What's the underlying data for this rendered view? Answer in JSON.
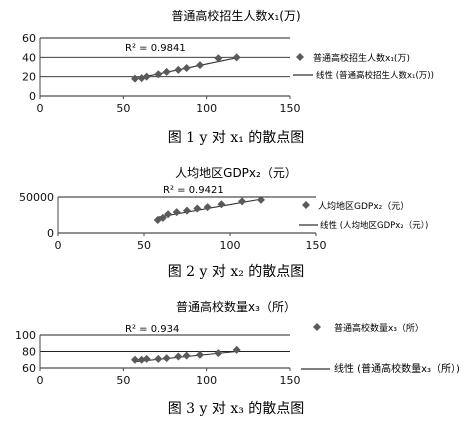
{
  "colors": {
    "axis": "#444444",
    "grid": "#222222",
    "marker": "#5a5a5a",
    "line": "#333333",
    "text": "#111111"
  },
  "chart_data": [
    {
      "type": "scatter",
      "title": "普通高校招生人数x₁(万)",
      "caption": "图 1  y 对 x₁ 的散点图",
      "r2_label": "R² = 0.9841",
      "series": [
        {
          "name": "普通高校招生人数x₁(万)",
          "x": [
            57,
            61,
            64,
            71,
            76,
            83,
            88,
            96,
            107,
            118
          ],
          "y": [
            18,
            18.5,
            20,
            22.5,
            25,
            27,
            29,
            32,
            39,
            40
          ]
        },
        {
          "name": "线性 (普通高校招生人数x₁(万))",
          "trendline": {
            "x": [
              56,
              118
            ],
            "y": [
              17.5,
              39.5
            ]
          }
        }
      ],
      "xlim": [
        0,
        150
      ],
      "ylim": [
        0,
        60
      ],
      "x_ticks": [
        "0",
        "50",
        "100",
        "150"
      ],
      "y_ticks": [
        "0",
        "20",
        "40",
        "60"
      ],
      "grid": "horizontal"
    },
    {
      "type": "scatter",
      "title": "人均地区GDPx₂（元）",
      "caption": "图 2  y 对 x₂ 的散点图",
      "r2_label": "R² = 0.9421",
      "series": [
        {
          "name": "人均地区GDPx₂（元）",
          "x": [
            58,
            61,
            64,
            69,
            75,
            81,
            87,
            95,
            107,
            118
          ],
          "y": [
            18000,
            21000,
            26000,
            29000,
            31000,
            34000,
            36000,
            40000,
            44000,
            46000
          ]
        },
        {
          "name": "线性 (人均地区GDPx₂（元）)",
          "trendline": {
            "x": [
              58,
              118
            ],
            "y": [
              22000,
              47000
            ]
          }
        }
      ],
      "xlim": [
        0,
        150
      ],
      "ylim": [
        0,
        50000
      ],
      "x_ticks": [
        "0",
        "50",
        "100",
        "150"
      ],
      "y_ticks": [
        "0",
        "50000"
      ],
      "grid": "horizontal"
    },
    {
      "type": "scatter",
      "title": "普通高校数量x₃（所）",
      "caption": "图 3  y 对 x₃ 的散点图",
      "r2_label": "R² = 0.934",
      "series": [
        {
          "name": "普通高校数量x₃（所）",
          "x": [
            57,
            61,
            64,
            71,
            76,
            83,
            88,
            96,
            107,
            118
          ],
          "y": [
            70,
            70,
            71,
            71,
            72,
            74,
            75,
            76,
            78,
            82
          ]
        },
        {
          "name": "线性 (普通高校数量x₃（所）)",
          "trendline": {
            "x": [
              56,
              118
            ],
            "y": [
              67.5,
              80
            ]
          }
        }
      ],
      "xlim": [
        0,
        150
      ],
      "ylim": [
        60,
        100
      ],
      "x_ticks": [
        "0",
        "50",
        "100",
        "150"
      ],
      "y_ticks": [
        "60",
        "80",
        "100"
      ],
      "grid": "horizontal"
    }
  ]
}
